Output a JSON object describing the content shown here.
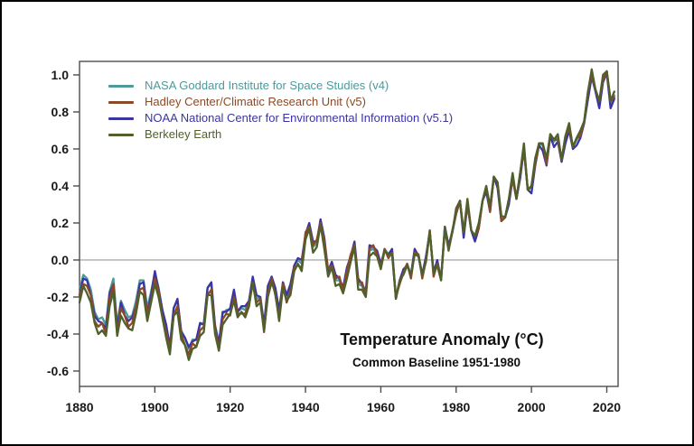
{
  "chart_data": {
    "type": "line",
    "title": "Temperature Anomaly (°C)",
    "subtitle": "Common Baseline 1951-1980",
    "xlabel": "",
    "ylabel": "",
    "x": {
      "start": 1880,
      "end": 2022,
      "step": 1
    },
    "xlim": [
      1880,
      2023
    ],
    "ylim": [
      -0.683,
      1.073
    ],
    "x_ticks": [
      1880,
      1900,
      1920,
      1940,
      1960,
      1980,
      2000,
      2020
    ],
    "y_ticks": [
      -0.6,
      -0.4,
      -0.2,
      0.0,
      0.2,
      0.4,
      0.6,
      0.8,
      1.0
    ],
    "grid": "horizontal zero line only",
    "zero_line": true,
    "legend_position": "top-left inside plot",
    "draw_order": [
      0,
      2,
      1,
      3
    ],
    "axis_color": "#4d4d4d",
    "tick_label_color": "#1a1a1a",
    "zero_line_color": "#b9b9b9",
    "series": [
      {
        "key": "nasa-giss",
        "name": "NASA Goddard Institute for Space Studies (v4)",
        "color": "#4D9A9B",
        "values": [
          -0.16,
          -0.08,
          -0.1,
          -0.16,
          -0.28,
          -0.32,
          -0.31,
          -0.35,
          -0.17,
          -0.1,
          -0.35,
          -0.22,
          -0.27,
          -0.31,
          -0.3,
          -0.22,
          -0.11,
          -0.11,
          -0.26,
          -0.17,
          -0.07,
          -0.15,
          -0.27,
          -0.36,
          -0.46,
          -0.26,
          -0.22,
          -0.38,
          -0.42,
          -0.48,
          -0.43,
          -0.43,
          -0.35,
          -0.34,
          -0.15,
          -0.13,
          -0.35,
          -0.45,
          -0.29,
          -0.27,
          -0.27,
          -0.18,
          -0.28,
          -0.26,
          -0.27,
          -0.22,
          -0.1,
          -0.21,
          -0.2,
          -0.36,
          -0.16,
          -0.09,
          -0.16,
          -0.29,
          -0.12,
          -0.2,
          -0.15,
          -0.03,
          0.0,
          -0.02,
          0.13,
          0.18,
          0.07,
          0.09,
          0.2,
          0.09,
          -0.07,
          -0.03,
          -0.11,
          -0.11,
          -0.17,
          -0.07,
          0.01,
          0.08,
          -0.13,
          -0.14,
          -0.19,
          0.05,
          0.06,
          0.03,
          -0.03,
          0.06,
          0.03,
          0.05,
          -0.2,
          -0.11,
          -0.06,
          -0.02,
          -0.08,
          0.05,
          0.03,
          -0.08,
          0.01,
          0.16,
          -0.07,
          -0.01,
          -0.1,
          0.18,
          0.07,
          0.16,
          0.26,
          0.32,
          0.14,
          0.31,
          0.16,
          0.12,
          0.18,
          0.32,
          0.39,
          0.27,
          0.45,
          0.41,
          0.22,
          0.23,
          0.32,
          0.45,
          0.33,
          0.46,
          0.61,
          0.38,
          0.39,
          0.53,
          0.63,
          0.62,
          0.53,
          0.68,
          0.64,
          0.66,
          0.54,
          0.66,
          0.72,
          0.61,
          0.65,
          0.68,
          0.75,
          0.9,
          1.01,
          0.92,
          0.85,
          0.98,
          1.02,
          0.85,
          0.89
        ]
      },
      {
        "key": "hadley-cru",
        "name": "Hadley Center/Climatic Research Unit (v5)",
        "color": "#8B4A27",
        "values": [
          -0.19,
          -0.13,
          -0.14,
          -0.19,
          -0.33,
          -0.36,
          -0.34,
          -0.4,
          -0.21,
          -0.13,
          -0.4,
          -0.26,
          -0.3,
          -0.36,
          -0.34,
          -0.25,
          -0.16,
          -0.15,
          -0.29,
          -0.22,
          -0.1,
          -0.17,
          -0.31,
          -0.39,
          -0.48,
          -0.3,
          -0.25,
          -0.4,
          -0.46,
          -0.51,
          -0.45,
          -0.47,
          -0.38,
          -0.36,
          -0.19,
          -0.16,
          -0.37,
          -0.49,
          -0.32,
          -0.29,
          -0.3,
          -0.2,
          -0.29,
          -0.29,
          -0.29,
          -0.23,
          -0.13,
          -0.23,
          -0.21,
          -0.39,
          -0.18,
          -0.1,
          -0.19,
          -0.31,
          -0.13,
          -0.23,
          -0.17,
          -0.04,
          -0.03,
          -0.04,
          0.15,
          0.18,
          0.08,
          0.11,
          0.2,
          0.1,
          -0.05,
          -0.03,
          -0.1,
          -0.09,
          -0.17,
          -0.06,
          0.03,
          0.08,
          -0.12,
          -0.12,
          -0.19,
          0.06,
          0.08,
          0.03,
          -0.04,
          0.06,
          0.01,
          0.04,
          -0.2,
          -0.13,
          -0.07,
          -0.02,
          -0.1,
          0.04,
          0.03,
          -0.1,
          0.0,
          0.16,
          -0.09,
          -0.02,
          -0.1,
          0.16,
          0.06,
          0.16,
          0.25,
          0.32,
          0.15,
          0.3,
          0.16,
          0.13,
          0.17,
          0.32,
          0.4,
          0.26,
          0.45,
          0.42,
          0.21,
          0.23,
          0.33,
          0.44,
          0.33,
          0.47,
          0.6,
          0.38,
          0.4,
          0.52,
          0.63,
          0.63,
          0.52,
          0.68,
          0.65,
          0.65,
          0.54,
          0.67,
          0.71,
          0.61,
          0.66,
          0.67,
          0.75,
          0.91,
          1.0,
          0.92,
          0.86,
          0.97,
          1.02,
          0.86,
          0.88
        ]
      },
      {
        "key": "noaa-ncei",
        "name": "NOAA National Center for Environmental Information (v5.1)",
        "color": "#3B34A3",
        "values": [
          -0.19,
          -0.1,
          -0.11,
          -0.19,
          -0.3,
          -0.33,
          -0.34,
          -0.37,
          -0.18,
          -0.13,
          -0.37,
          -0.23,
          -0.3,
          -0.33,
          -0.31,
          -0.25,
          -0.13,
          -0.12,
          -0.29,
          -0.19,
          -0.06,
          -0.16,
          -0.27,
          -0.35,
          -0.47,
          -0.26,
          -0.21,
          -0.39,
          -0.42,
          -0.47,
          -0.44,
          -0.43,
          -0.34,
          -0.35,
          -0.15,
          -0.12,
          -0.36,
          -0.45,
          -0.28,
          -0.28,
          -0.26,
          -0.16,
          -0.28,
          -0.25,
          -0.25,
          -0.22,
          -0.09,
          -0.19,
          -0.2,
          -0.35,
          -0.14,
          -0.09,
          -0.15,
          -0.27,
          -0.12,
          -0.19,
          -0.13,
          -0.03,
          0.01,
          0.0,
          0.14,
          0.2,
          0.1,
          0.1,
          0.22,
          0.12,
          -0.06,
          -0.01,
          -0.08,
          -0.1,
          -0.15,
          -0.04,
          0.02,
          0.1,
          -0.1,
          -0.13,
          -0.17,
          0.08,
          0.07,
          0.05,
          -0.02,
          0.05,
          0.03,
          0.06,
          -0.21,
          -0.11,
          -0.05,
          -0.03,
          -0.08,
          0.06,
          0.02,
          -0.08,
          0.02,
          0.15,
          -0.07,
          0.0,
          -0.11,
          0.18,
          0.08,
          0.15,
          0.25,
          0.32,
          0.12,
          0.3,
          0.16,
          0.1,
          0.17,
          0.32,
          0.37,
          0.26,
          0.45,
          0.39,
          0.21,
          0.23,
          0.3,
          0.44,
          0.33,
          0.44,
          0.6,
          0.38,
          0.36,
          0.51,
          0.62,
          0.59,
          0.51,
          0.67,
          0.61,
          0.64,
          0.53,
          0.63,
          0.7,
          0.6,
          0.62,
          0.66,
          0.74,
          0.87,
          0.99,
          0.91,
          0.82,
          0.96,
          1.01,
          0.82,
          0.87
        ]
      },
      {
        "key": "berkeley-earth",
        "name": "Berkeley Earth",
        "color": "#50602A",
        "values": [
          -0.23,
          -0.14,
          -0.18,
          -0.23,
          -0.34,
          -0.4,
          -0.38,
          -0.41,
          -0.25,
          -0.17,
          -0.41,
          -0.3,
          -0.34,
          -0.37,
          -0.38,
          -0.29,
          -0.17,
          -0.19,
          -0.33,
          -0.23,
          -0.13,
          -0.2,
          -0.31,
          -0.42,
          -0.51,
          -0.3,
          -0.28,
          -0.43,
          -0.46,
          -0.54,
          -0.48,
          -0.47,
          -0.41,
          -0.39,
          -0.19,
          -0.19,
          -0.4,
          -0.49,
          -0.35,
          -0.32,
          -0.29,
          -0.22,
          -0.31,
          -0.28,
          -0.31,
          -0.25,
          -0.12,
          -0.25,
          -0.23,
          -0.38,
          -0.2,
          -0.12,
          -0.18,
          -0.33,
          -0.15,
          -0.22,
          -0.19,
          -0.06,
          -0.02,
          -0.06,
          0.11,
          0.17,
          0.04,
          0.07,
          0.19,
          0.06,
          -0.09,
          -0.04,
          -0.14,
          -0.13,
          -0.18,
          -0.1,
          -0.01,
          0.07,
          -0.16,
          -0.16,
          -0.2,
          0.02,
          0.04,
          0.02,
          -0.05,
          0.05,
          0.03,
          0.03,
          -0.21,
          -0.11,
          -0.08,
          -0.03,
          -0.08,
          0.03,
          0.02,
          -0.08,
          -0.01,
          0.15,
          -0.07,
          -0.03,
          -0.11,
          0.18,
          0.05,
          0.15,
          0.28,
          0.32,
          0.15,
          0.33,
          0.16,
          0.13,
          0.2,
          0.32,
          0.4,
          0.29,
          0.45,
          0.42,
          0.24,
          0.23,
          0.33,
          0.47,
          0.33,
          0.47,
          0.63,
          0.38,
          0.4,
          0.55,
          0.63,
          0.63,
          0.55,
          0.68,
          0.65,
          0.68,
          0.54,
          0.67,
          0.74,
          0.61,
          0.66,
          0.7,
          0.75,
          0.91,
          1.03,
          0.92,
          0.86,
          1.0,
          1.02,
          0.86,
          0.91
        ]
      }
    ]
  }
}
